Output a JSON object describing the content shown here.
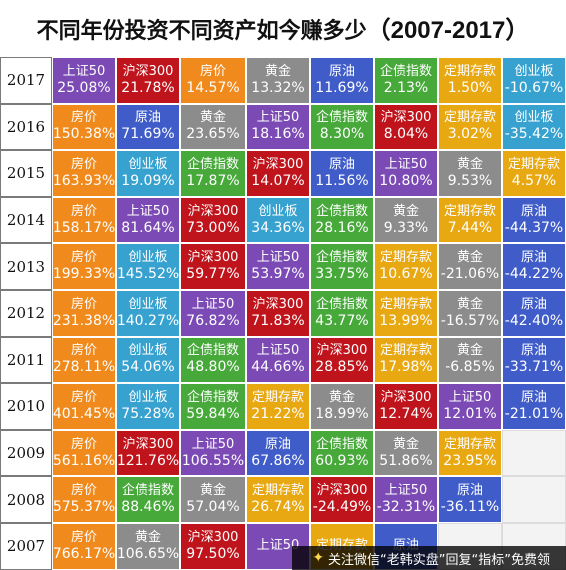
{
  "title": {
    "main": "不同年份投资不同资产如今赚多少",
    "years": "（2007-2017）"
  },
  "colors": {
    "上证50": "#7b4ab5",
    "沪深300": "#c0141c",
    "房价": "#f08a1c",
    "黄金": "#8c8c8c",
    "原油": "#3f5cc9",
    "企债指数": "#46a93a",
    "定期存款": "#e8a812",
    "创业板": "#37a2cf"
  },
  "footer": {
    "text": "关注微信“老韩实盘”回复“指标”免费领"
  },
  "chart_data": {
    "type": "table",
    "title": "不同年份投资不同资产如今赚多少（2007-2017）",
    "rows": [
      {
        "year": "2017",
        "cells": [
          {
            "asset": "上证50",
            "value": "25.08%"
          },
          {
            "asset": "沪深300",
            "value": "21.78%"
          },
          {
            "asset": "房价",
            "value": "14.57%"
          },
          {
            "asset": "黄金",
            "value": "13.32%"
          },
          {
            "asset": "原油",
            "value": "11.69%"
          },
          {
            "asset": "企债指数",
            "value": "2.13%"
          },
          {
            "asset": "定期存款",
            "value": "1.50%"
          },
          {
            "asset": "创业板",
            "value": "-10.67%"
          }
        ]
      },
      {
        "year": "2016",
        "cells": [
          {
            "asset": "房价",
            "value": "150.38%"
          },
          {
            "asset": "原油",
            "value": "71.69%"
          },
          {
            "asset": "黄金",
            "value": "23.65%"
          },
          {
            "asset": "上证50",
            "value": "18.16%"
          },
          {
            "asset": "企债指数",
            "value": "8.30%"
          },
          {
            "asset": "沪深300",
            "value": "8.04%"
          },
          {
            "asset": "定期存款",
            "value": "3.02%"
          },
          {
            "asset": "创业板",
            "value": "-35.42%"
          }
        ]
      },
      {
        "year": "2015",
        "cells": [
          {
            "asset": "房价",
            "value": "163.93%"
          },
          {
            "asset": "创业板",
            "value": "19.09%"
          },
          {
            "asset": "企债指数",
            "value": "17.87%"
          },
          {
            "asset": "沪深300",
            "value": "14.07%"
          },
          {
            "asset": "原油",
            "value": "11.56%"
          },
          {
            "asset": "上证50",
            "value": "10.80%"
          },
          {
            "asset": "黄金",
            "value": "9.53%"
          },
          {
            "asset": "定期存款",
            "value": "4.57%"
          }
        ]
      },
      {
        "year": "2014",
        "cells": [
          {
            "asset": "房价",
            "value": "158.17%"
          },
          {
            "asset": "上证50",
            "value": "81.64%"
          },
          {
            "asset": "沪深300",
            "value": "73.00%"
          },
          {
            "asset": "创业板",
            "value": "34.36%"
          },
          {
            "asset": "企债指数",
            "value": "28.16%"
          },
          {
            "asset": "黄金",
            "value": "9.33%"
          },
          {
            "asset": "定期存款",
            "value": "7.44%"
          },
          {
            "asset": "原油",
            "value": "-44.37%"
          }
        ]
      },
      {
        "year": "2013",
        "cells": [
          {
            "asset": "房价",
            "value": "199.33%"
          },
          {
            "asset": "创业板",
            "value": "145.52%"
          },
          {
            "asset": "沪深300",
            "value": "59.77%"
          },
          {
            "asset": "上证50",
            "value": "53.97%"
          },
          {
            "asset": "企债指数",
            "value": "33.75%"
          },
          {
            "asset": "定期存款",
            "value": "10.67%"
          },
          {
            "asset": "黄金",
            "value": "-21.06%"
          },
          {
            "asset": "原油",
            "value": "-44.22%"
          }
        ]
      },
      {
        "year": "2012",
        "cells": [
          {
            "asset": "房价",
            "value": "231.38%"
          },
          {
            "asset": "创业板",
            "value": "140.27%"
          },
          {
            "asset": "上证50",
            "value": "76.82%"
          },
          {
            "asset": "沪深300",
            "value": "71.83%"
          },
          {
            "asset": "企债指数",
            "value": "43.77%"
          },
          {
            "asset": "定期存款",
            "value": "13.99%"
          },
          {
            "asset": "黄金",
            "value": "-16.57%"
          },
          {
            "asset": "原油",
            "value": "-42.40%"
          }
        ]
      },
      {
        "year": "2011",
        "cells": [
          {
            "asset": "房价",
            "value": "278.11%"
          },
          {
            "asset": "创业板",
            "value": "54.06%"
          },
          {
            "asset": "企债指数",
            "value": "48.80%"
          },
          {
            "asset": "上证50",
            "value": "44.66%"
          },
          {
            "asset": "沪深300",
            "value": "28.85%"
          },
          {
            "asset": "定期存款",
            "value": "17.98%"
          },
          {
            "asset": "黄金",
            "value": "-6.85%"
          },
          {
            "asset": "原油",
            "value": "-33.71%"
          }
        ]
      },
      {
        "year": "2010",
        "cells": [
          {
            "asset": "房价",
            "value": "401.45%"
          },
          {
            "asset": "创业板",
            "value": "75.28%"
          },
          {
            "asset": "企债指数",
            "value": "59.84%"
          },
          {
            "asset": "定期存款",
            "value": "21.22%"
          },
          {
            "asset": "黄金",
            "value": "18.99%"
          },
          {
            "asset": "沪深300",
            "value": "12.74%"
          },
          {
            "asset": "上证50",
            "value": "12.01%"
          },
          {
            "asset": "原油",
            "value": "-21.01%"
          }
        ]
      },
      {
        "year": "2009",
        "cells": [
          {
            "asset": "房价",
            "value": "561.16%"
          },
          {
            "asset": "沪深300",
            "value": "121.76%"
          },
          {
            "asset": "上证50",
            "value": "106.55%"
          },
          {
            "asset": "原油",
            "value": "67.86%"
          },
          {
            "asset": "企债指数",
            "value": "60.93%"
          },
          {
            "asset": "黄金",
            "value": "51.86%"
          },
          {
            "asset": "定期存款",
            "value": "23.95%"
          }
        ]
      },
      {
        "year": "2008",
        "cells": [
          {
            "asset": "房价",
            "value": "575.37%"
          },
          {
            "asset": "企债指数",
            "value": "88.46%"
          },
          {
            "asset": "黄金",
            "value": "57.04%"
          },
          {
            "asset": "定期存款",
            "value": "26.74%"
          },
          {
            "asset": "沪深300",
            "value": "-24.49%"
          },
          {
            "asset": "上证50",
            "value": "-32.31%"
          },
          {
            "asset": "原油",
            "value": "-36.11%"
          }
        ]
      },
      {
        "year": "2007",
        "cells": [
          {
            "asset": "房价",
            "value": "766.17%"
          },
          {
            "asset": "黄金",
            "value": "106.65%"
          },
          {
            "asset": "沪深300",
            "value": "97.50%"
          },
          {
            "asset": "上证50",
            "value": ""
          },
          {
            "asset": "定期存款",
            "value": ""
          },
          {
            "asset": "原油",
            "value": ""
          }
        ]
      }
    ]
  }
}
